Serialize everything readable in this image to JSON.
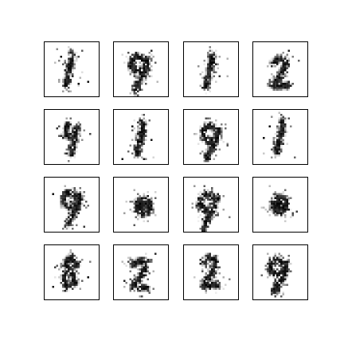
{
  "figure": {
    "rows": 4,
    "cols": 4,
    "pixels_per_side": 28,
    "ink_color": "#000000",
    "background_color": "#ffffff",
    "frame_color": "#000000"
  },
  "samples": [
    {
      "glyph": "1"
    },
    {
      "glyph": "9"
    },
    {
      "glyph": "1"
    },
    {
      "glyph": "2"
    },
    {
      "glyph": "4"
    },
    {
      "glyph": "1"
    },
    {
      "glyph": "9"
    },
    {
      "glyph": "1"
    },
    {
      "glyph": "9"
    },
    {
      "glyph": "blob"
    },
    {
      "glyph": "9"
    },
    {
      "glyph": "blob"
    },
    {
      "glyph": "8"
    },
    {
      "glyph": "2"
    },
    {
      "glyph": "2"
    },
    {
      "glyph": "9"
    }
  ]
}
